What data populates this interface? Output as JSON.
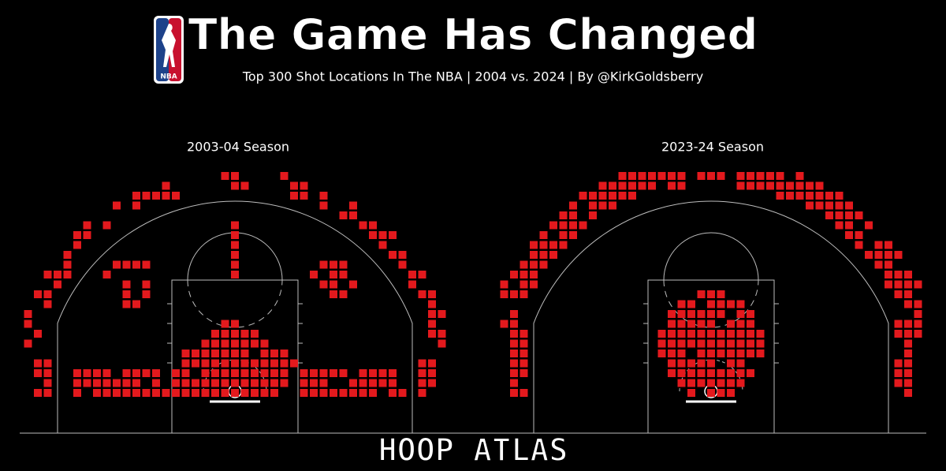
{
  "header": {
    "logo_text": "NBA",
    "title": "The Game Has Changed",
    "subtitle": "Top 300 Shot Locations In The NBA | 2004 vs. 2024 | By @KirkGoldsberry"
  },
  "panels": [
    {
      "title": "2003-04 Season"
    },
    {
      "title": "2023-24 Season"
    }
  ],
  "footer": {
    "brand": "HOOP ATLAS"
  }
}
